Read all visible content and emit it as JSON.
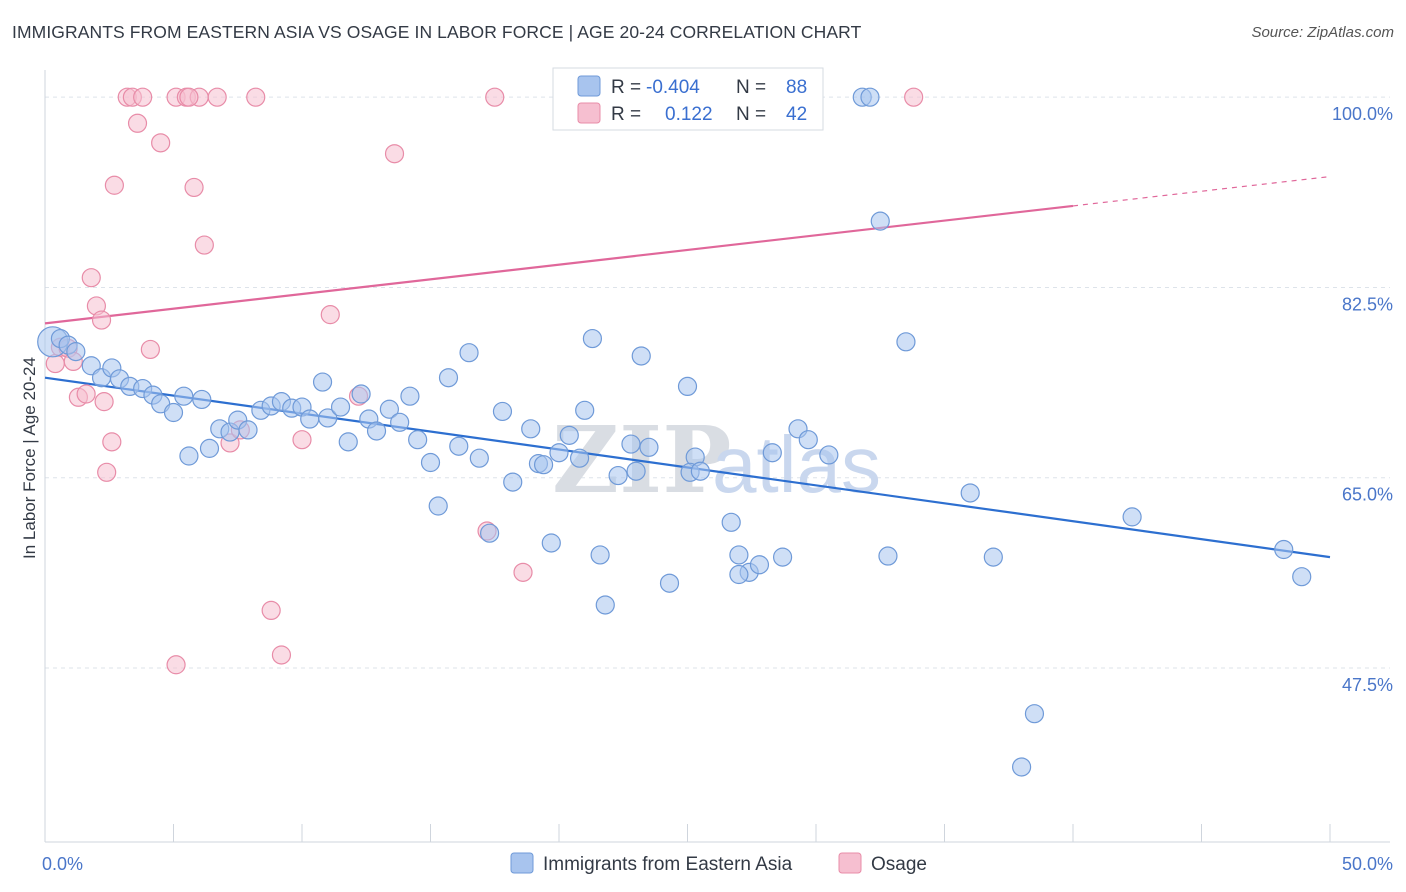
{
  "title": "IMMIGRANTS FROM EASTERN ASIA VS OSAGE IN LABOR FORCE | AGE 20-24 CORRELATION CHART",
  "source": "Source: ZipAtlas.com",
  "watermark": {
    "zip": "ZIP",
    "atlas": "atlas"
  },
  "colors": {
    "blue_fill": "#a8c4ee",
    "blue_stroke": "#6f9ad8",
    "blue_line": "#2d6fd0",
    "pink_fill": "#f6bfd0",
    "pink_stroke": "#e88ca8",
    "pink_line": "#e0679a",
    "tick_text": "#4a76c9",
    "grid": "#dde3ea"
  },
  "legend": {
    "r_label": "R =",
    "n_label": "N =",
    "blue_r": "-0.404",
    "blue_n": "88",
    "pink_r": "0.122",
    "pink_n": "42"
  },
  "chart_data": {
    "type": "scatter",
    "title": "IMMIGRANTS FROM EASTERN ASIA VS OSAGE IN LABOR FORCE | AGE 20-24 CORRELATION CHART",
    "xlabel": "",
    "ylabel": "In Labor Force | Age 20-24",
    "xlim": [
      0,
      50
    ],
    "ylim": [
      31.5,
      102.5
    ],
    "x_tick_labels": [
      "0.0%",
      "50.0%"
    ],
    "y_ticks": [
      47.5,
      65.0,
      82.5,
      100.0
    ],
    "y_tick_labels": [
      "47.5%",
      "65.0%",
      "82.5%",
      "100.0%"
    ],
    "grid": true,
    "legend_position": "top-center",
    "series": [
      {
        "name": "Immigrants from Eastern Asia",
        "color": "#a8c4ee",
        "trend": {
          "x": [
            0,
            50
          ],
          "y": [
            74.2,
            57.7
          ],
          "solid_to": 50
        },
        "points": [
          [
            0.3,
            77.5
          ],
          [
            0.6,
            77.8
          ],
          [
            0.9,
            77.2
          ],
          [
            1.2,
            76.6
          ],
          [
            1.8,
            75.3
          ],
          [
            2.2,
            74.2
          ],
          [
            2.6,
            75.1
          ],
          [
            2.9,
            74.1
          ],
          [
            3.3,
            73.4
          ],
          [
            3.8,
            73.2
          ],
          [
            4.2,
            72.6
          ],
          [
            4.5,
            71.8
          ],
          [
            5.0,
            71.0
          ],
          [
            5.4,
            72.5
          ],
          [
            5.6,
            67.0
          ],
          [
            6.1,
            72.2
          ],
          [
            6.4,
            67.7
          ],
          [
            6.8,
            69.5
          ],
          [
            7.2,
            69.2
          ],
          [
            7.5,
            70.3
          ],
          [
            7.9,
            69.4
          ],
          [
            8.4,
            71.2
          ],
          [
            8.8,
            71.6
          ],
          [
            9.2,
            72.0
          ],
          [
            9.6,
            71.4
          ],
          [
            10.0,
            71.5
          ],
          [
            10.3,
            70.4
          ],
          [
            10.8,
            73.8
          ],
          [
            11.0,
            70.5
          ],
          [
            11.5,
            71.5
          ],
          [
            11.8,
            68.3
          ],
          [
            12.3,
            72.7
          ],
          [
            12.6,
            70.4
          ],
          [
            12.9,
            69.3
          ],
          [
            13.4,
            71.3
          ],
          [
            13.8,
            70.1
          ],
          [
            14.2,
            72.5
          ],
          [
            14.5,
            68.5
          ],
          [
            15.0,
            66.4
          ],
          [
            15.3,
            62.4
          ],
          [
            15.7,
            74.2
          ],
          [
            16.1,
            67.9
          ],
          [
            16.5,
            76.5
          ],
          [
            16.9,
            66.8
          ],
          [
            17.3,
            59.9
          ],
          [
            17.8,
            71.1
          ],
          [
            18.2,
            64.6
          ],
          [
            18.9,
            69.5
          ],
          [
            19.2,
            66.3
          ],
          [
            19.7,
            59.0
          ],
          [
            19.4,
            66.2
          ],
          [
            20.0,
            67.3
          ],
          [
            20.4,
            68.9
          ],
          [
            20.8,
            66.8
          ],
          [
            21.0,
            71.2
          ],
          [
            21.3,
            77.8
          ],
          [
            21.6,
            57.9
          ],
          [
            21.8,
            53.3
          ],
          [
            22.3,
            65.2
          ],
          [
            22.8,
            68.1
          ],
          [
            23.2,
            76.2
          ],
          [
            23.5,
            67.8
          ],
          [
            23.0,
            65.6
          ],
          [
            25.0,
            73.4
          ],
          [
            25.3,
            66.9
          ],
          [
            24.3,
            55.3
          ],
          [
            25.1,
            65.5
          ],
          [
            25.5,
            65.6
          ],
          [
            26.7,
            60.9
          ],
          [
            27.0,
            57.9
          ],
          [
            27.4,
            56.3
          ],
          [
            27.8,
            57.0
          ],
          [
            28.3,
            67.3
          ],
          [
            28.7,
            57.7
          ],
          [
            29.3,
            69.5
          ],
          [
            29.7,
            68.5
          ],
          [
            30.5,
            67.1
          ],
          [
            31.8,
            100.0
          ],
          [
            32.1,
            100.0
          ],
          [
            32.5,
            88.6
          ],
          [
            32.8,
            57.8
          ],
          [
            33.5,
            77.5
          ],
          [
            36.0,
            63.6
          ],
          [
            36.9,
            57.7
          ],
          [
            38.5,
            43.3
          ],
          [
            38.0,
            38.4
          ],
          [
            42.3,
            61.4
          ],
          [
            48.2,
            58.4
          ],
          [
            48.9,
            55.9
          ],
          [
            27.0,
            56.1
          ]
        ]
      },
      {
        "name": "Osage",
        "color": "#f6bfd0",
        "trend": {
          "x": [
            0,
            50
          ],
          "y": [
            79.2,
            92.7
          ],
          "solid_to": 40
        },
        "points": [
          [
            0.4,
            75.5
          ],
          [
            0.6,
            77.0
          ],
          [
            0.9,
            76.9
          ],
          [
            1.1,
            75.7
          ],
          [
            1.3,
            72.4
          ],
          [
            1.6,
            72.7
          ],
          [
            1.8,
            83.4
          ],
          [
            2.0,
            80.8
          ],
          [
            2.2,
            79.5
          ],
          [
            2.3,
            72.0
          ],
          [
            2.4,
            65.5
          ],
          [
            2.6,
            68.3
          ],
          [
            2.7,
            91.9
          ],
          [
            3.2,
            100.0
          ],
          [
            3.4,
            100.0
          ],
          [
            3.6,
            97.6
          ],
          [
            3.8,
            100.0
          ],
          [
            4.1,
            76.8
          ],
          [
            4.5,
            95.8
          ],
          [
            5.1,
            100.0
          ],
          [
            5.5,
            100.0
          ],
          [
            5.8,
            91.7
          ],
          [
            6.0,
            100.0
          ],
          [
            6.2,
            86.4
          ],
          [
            6.7,
            100.0
          ],
          [
            7.2,
            68.2
          ],
          [
            7.6,
            69.4
          ],
          [
            8.2,
            100.0
          ],
          [
            8.8,
            52.8
          ],
          [
            9.2,
            48.7
          ],
          [
            10.0,
            68.5
          ],
          [
            11.1,
            80.0
          ],
          [
            12.2,
            72.5
          ],
          [
            13.6,
            94.8
          ],
          [
            5.1,
            47.8
          ],
          [
            17.2,
            60.1
          ],
          [
            17.5,
            100.0
          ],
          [
            18.6,
            56.3
          ],
          [
            20.4,
            100.0
          ],
          [
            23.2,
            100.0
          ],
          [
            33.8,
            100.0
          ],
          [
            5.6,
            100.0
          ]
        ]
      }
    ]
  },
  "bottom_legend": {
    "blue": "Immigrants from Eastern Asia",
    "pink": "Osage"
  }
}
